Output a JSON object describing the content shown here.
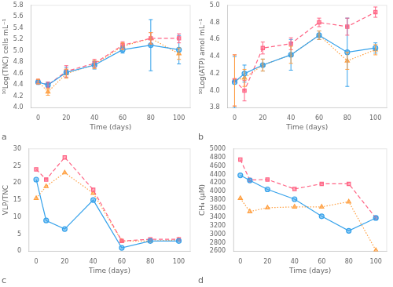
{
  "chart_data": [
    {
      "type": "line",
      "title": "a",
      "x_label": "Time (days)",
      "y_label": "¹⁰Log(TNC) cells mL⁻¹",
      "x": [
        0,
        7,
        20,
        40,
        60,
        80,
        100
      ],
      "xlim": [
        -5,
        108
      ],
      "xticks": [
        0,
        20,
        40,
        60,
        80,
        100
      ],
      "ylim": [
        4.0,
        5.8
      ],
      "yticks": [
        {
          "value": 4.0,
          "label": "4.0"
        },
        {
          "value": 4.2,
          "label": "4.2"
        },
        {
          "value": 4.4,
          "label": "4.4"
        },
        {
          "value": 4.6,
          "label": "4.6"
        },
        {
          "value": 4.8,
          "label": "4.8"
        },
        {
          "value": 5.0,
          "label": "5.0"
        },
        {
          "value": 5.2,
          "label": "5.2"
        },
        {
          "value": 5.4,
          "label": "5.4"
        },
        {
          "value": 5.6,
          "label": "5.6"
        },
        {
          "value": 5.8,
          "label": "5.8"
        }
      ],
      "grid": false,
      "series": [
        {
          "values": [
            4.45,
            4.4,
            4.62,
            4.75,
            5.02,
            5.1,
            5.02
          ],
          "yerr": [
            0.04,
            0.05,
            0.09,
            0.07,
            0.06,
            0.45,
            0.25
          ],
          "marker": "circle",
          "line_style": "solid"
        },
        {
          "values": [
            4.46,
            4.4,
            4.64,
            4.78,
            5.1,
            5.22,
            5.22
          ],
          "yerr": [
            0.04,
            0.05,
            0.1,
            0.07,
            0.06,
            0.1,
            0.08
          ],
          "marker": "square",
          "line_style": "dashed"
        },
        {
          "values": [
            4.46,
            4.28,
            4.6,
            4.76,
            5.08,
            5.22,
            4.95
          ],
          "yerr": [
            0.04,
            0.06,
            0.08,
            0.07,
            0.06,
            0.1,
            0.1
          ],
          "marker": "triangle",
          "line_style": "dotted"
        }
      ]
    },
    {
      "type": "line",
      "title": "b",
      "x_label": "Time (days)",
      "y_label": "¹⁰Log(ATP) amol mL⁻¹",
      "x": [
        0,
        7,
        20,
        40,
        60,
        80,
        100
      ],
      "xlim": [
        -5,
        108
      ],
      "xticks": [
        0,
        20,
        40,
        60,
        80,
        100
      ],
      "ylim": [
        3.8,
        5.0
      ],
      "yticks": [
        {
          "value": 3.8,
          "label": "3.8"
        },
        {
          "value": 4.0,
          "label": "4.0"
        },
        {
          "value": 4.2,
          "label": "4.2"
        },
        {
          "value": 4.4,
          "label": "4.4"
        },
        {
          "value": 4.6,
          "label": "4.6"
        },
        {
          "value": 4.8,
          "label": "4.8"
        },
        {
          "value": 5.0,
          "label": "5.0"
        }
      ],
      "grid": false,
      "series": [
        {
          "values": [
            4.1,
            4.2,
            4.3,
            4.42,
            4.65,
            4.45,
            4.5
          ],
          "yerr": [
            0.3,
            0.1,
            0.07,
            0.18,
            0.05,
            0.4,
            0.06
          ],
          "marker": "circle",
          "line_style": "solid"
        },
        {
          "values": [
            4.12,
            4.0,
            4.5,
            4.55,
            4.8,
            4.75,
            4.92
          ],
          "yerr": [
            0.3,
            0.12,
            0.07,
            0.07,
            0.05,
            0.1,
            0.06
          ],
          "marker": "square",
          "line_style": "dashed"
        },
        {
          "values": [
            4.12,
            4.15,
            4.3,
            4.42,
            4.65,
            4.35,
            4.48
          ],
          "yerr": [
            0.3,
            0.1,
            0.07,
            0.1,
            0.05,
            0.1,
            0.06
          ],
          "marker": "triangle",
          "line_style": "dotted"
        }
      ]
    },
    {
      "type": "line",
      "title": "c",
      "x_label": "Time (days)",
      "y_label": "VLP/TNC",
      "x": [
        0,
        7,
        20,
        40,
        60,
        80,
        100
      ],
      "xlim": [
        -5,
        108
      ],
      "xticks": [
        0,
        20,
        40,
        60,
        80,
        100
      ],
      "ylim": [
        0,
        30
      ],
      "yticks": [
        0,
        5,
        10,
        15,
        20,
        25,
        30
      ],
      "grid": false,
      "series": [
        {
          "values": [
            21,
            9,
            6.5,
            15,
            1,
            3,
            3
          ],
          "marker": "circle",
          "line_style": "solid"
        },
        {
          "values": [
            24,
            21,
            27.5,
            18,
            3,
            3.5,
            3.5
          ],
          "marker": "square",
          "line_style": "dashed"
        },
        {
          "values": [
            15.5,
            19,
            23,
            17,
            3,
            3,
            3.3
          ],
          "marker": "triangle",
          "line_style": "dotted"
        }
      ]
    },
    {
      "type": "line",
      "title": "d",
      "x_label": "Time (days)",
      "y_label": "CH₄ (μM)",
      "x": [
        0,
        7,
        20,
        40,
        60,
        80,
        100
      ],
      "xlim": [
        -5,
        108
      ],
      "xticks": [
        0,
        20,
        40,
        60,
        80,
        100
      ],
      "ylim": [
        2600,
        5000
      ],
      "yticks": [
        2600,
        2800,
        3000,
        3200,
        3400,
        3600,
        3800,
        4000,
        4200,
        4400,
        4600,
        4800,
        5000
      ],
      "grid": false,
      "series": [
        {
          "values": [
            4380,
            4260,
            4050,
            3820,
            3420,
            3080,
            3380
          ],
          "marker": "circle",
          "line_style": "solid"
        },
        {
          "values": [
            4750,
            4270,
            4280,
            4060,
            4180,
            4180,
            3380
          ],
          "marker": "square",
          "line_style": "dashed"
        },
        {
          "values": [
            3840,
            3530,
            3620,
            3640,
            3640,
            3760,
            2620
          ],
          "marker": "triangle",
          "line_style": "dotted"
        }
      ]
    }
  ]
}
